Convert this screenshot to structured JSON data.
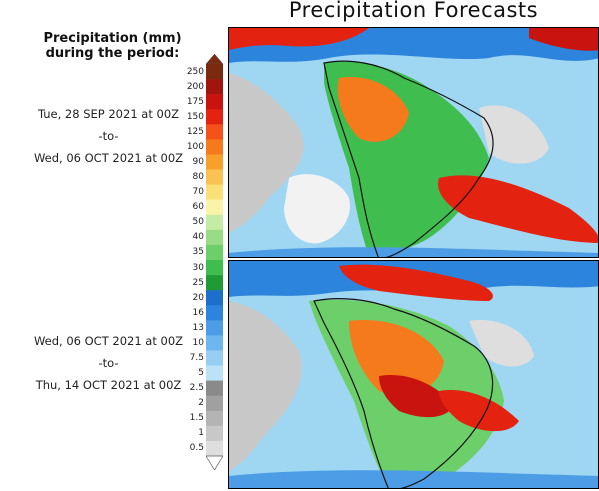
{
  "title": "Precipitation Forecasts",
  "legend": {
    "title_line1": "Precipitation (mm)",
    "title_line2": "during the period:",
    "levels": [
      "250",
      "200",
      "175",
      "150",
      "125",
      "100",
      "90",
      "80",
      "70",
      "60",
      "50",
      "40",
      "35",
      "30",
      "25",
      "20",
      "16",
      "13",
      "10",
      "7.5",
      "5",
      "2.5",
      "2",
      "1.5",
      "1",
      "0.5"
    ],
    "colors": [
      "#7a2a0e",
      "#a1150f",
      "#c8130f",
      "#e3220f",
      "#f4521a",
      "#f57a1c",
      "#f8a12a",
      "#f9c353",
      "#fbe07a",
      "#fbf3a8",
      "#c4eca4",
      "#98dd85",
      "#6ccf6a",
      "#3fbd4e",
      "#1f9a35",
      "#1d6fc9",
      "#2c84dc",
      "#4c9ce6",
      "#6eb6ee",
      "#97cef4",
      "#bde2f8",
      "#8a8a8a",
      "#a0a0a0",
      "#b4b4b4",
      "#c8c8c8",
      "#dedede"
    ]
  },
  "periods": [
    {
      "start": "Tue, 28 SEP 2021 at 00Z",
      "sep": "-to-",
      "end": "Wed, 06 OCT 2021 at 00Z"
    },
    {
      "start": "Wed, 06 OCT 2021 at 00Z",
      "sep": "-to-",
      "end": "Thu, 14 OCT 2021 at 00Z"
    }
  ]
}
